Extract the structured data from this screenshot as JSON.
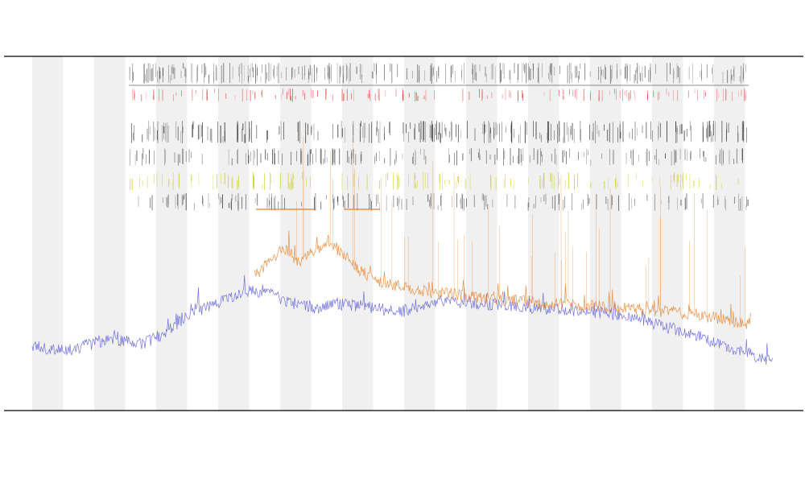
{
  "chart_data": {
    "type": "line",
    "title": "",
    "subtitle_1": "",
    "subtitle_2": "",
    "xlabel": "",
    "ylabel": "",
    "legend": {
      "placement": "top-left",
      "entries": []
    },
    "grid": false,
    "x_range": [
      0,
      1
    ],
    "y_range": [
      0,
      1
    ],
    "band_count": 12,
    "series": [
      {
        "type": "line",
        "color": "#5a5ad8",
        "keypoints_x": [
          0.0,
          0.05,
          0.1,
          0.15,
          0.18,
          0.22,
          0.26,
          0.28,
          0.32,
          0.34,
          0.38,
          0.42,
          0.5,
          0.55,
          0.62,
          0.68,
          0.75,
          0.8,
          0.85,
          0.9,
          0.95,
          1.0
        ],
        "keypoints_y": [
          0.18,
          0.17,
          0.2,
          0.19,
          0.22,
          0.28,
          0.31,
          0.33,
          0.34,
          0.31,
          0.29,
          0.3,
          0.28,
          0.31,
          0.3,
          0.29,
          0.28,
          0.27,
          0.24,
          0.21,
          0.17,
          0.14
        ]
      },
      {
        "type": "line",
        "color": "#e8802a",
        "keypoints_x": [
          0.3,
          0.34,
          0.36,
          0.4,
          0.44,
          0.47,
          0.52,
          0.6,
          0.7,
          0.8,
          0.9,
          0.97
        ],
        "keypoints_y": [
          0.38,
          0.46,
          0.42,
          0.48,
          0.4,
          0.36,
          0.34,
          0.32,
          0.3,
          0.29,
          0.27,
          0.24
        ]
      },
      {
        "type": "markers",
        "row": 1,
        "color": "#555555",
        "count": 260
      },
      {
        "type": "markers",
        "row": 2,
        "color": "#e04040",
        "count": 150
      },
      {
        "type": "markers",
        "row": 3,
        "color": "#222222",
        "count": 240
      },
      {
        "type": "markers",
        "row": 4,
        "color": "#333333",
        "count": 170
      },
      {
        "type": "markers",
        "row": 5,
        "color": "#c8c800",
        "count": 130
      },
      {
        "type": "markers",
        "row": 6,
        "color": "#444444",
        "count": 150
      }
    ],
    "colors": {
      "band": "#f0f0f0",
      "axis": "#000000",
      "reference_line": "#666666",
      "highlight_segment": "#e8802a"
    }
  }
}
